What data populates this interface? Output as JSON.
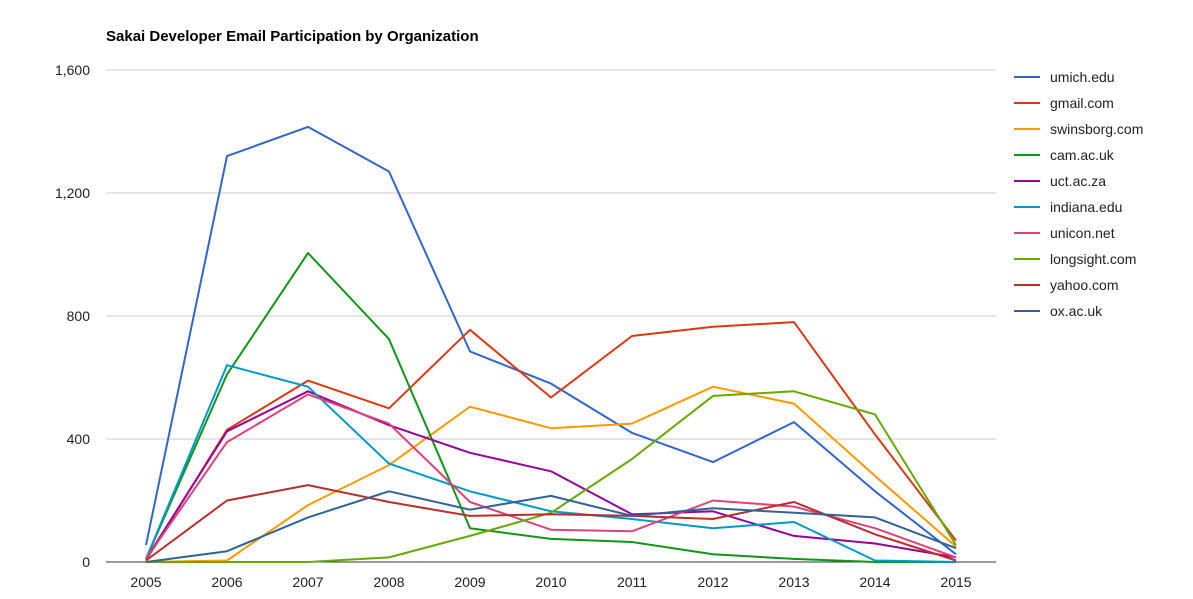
{
  "chart_data": {
    "type": "line",
    "title": "Sakai Developer Email Participation by Organization",
    "xlabel": "",
    "ylabel": "",
    "ylim": [
      0,
      1600
    ],
    "y_ticks": [
      0,
      400,
      800,
      1200,
      1600
    ],
    "y_tick_labels": [
      "0",
      "400",
      "800",
      "1,200",
      "1,600"
    ],
    "grid": true,
    "legend_position": "right",
    "categories": [
      "2005",
      "2006",
      "2007",
      "2008",
      "2009",
      "2010",
      "2011",
      "2012",
      "2013",
      "2014",
      "2015"
    ],
    "series": [
      {
        "name": "umich.edu",
        "color": "#3366cc",
        "values": [
          55,
          1320,
          1415,
          1270,
          685,
          580,
          420,
          325,
          455,
          230,
          25
        ]
      },
      {
        "name": "gmail.com",
        "color": "#dc3912",
        "values": [
          5,
          430,
          590,
          500,
          755,
          535,
          735,
          765,
          780,
          415,
          70
        ]
      },
      {
        "name": "swinsborg.com",
        "color": "#ff9900",
        "values": [
          0,
          5,
          185,
          315,
          505,
          435,
          450,
          570,
          515,
          280,
          50
        ]
      },
      {
        "name": "cam.ac.uk",
        "color": "#109618",
        "values": [
          10,
          610,
          1005,
          725,
          110,
          75,
          65,
          25,
          10,
          0,
          0
        ]
      },
      {
        "name": "uct.ac.za",
        "color": "#990099",
        "values": [
          10,
          425,
          555,
          445,
          355,
          295,
          155,
          165,
          85,
          60,
          15
        ]
      },
      {
        "name": "indiana.edu",
        "color": "#0099c6",
        "values": [
          10,
          640,
          570,
          320,
          230,
          165,
          140,
          110,
          130,
          5,
          0
        ]
      },
      {
        "name": "unicon.net",
        "color": "#dd4477",
        "values": [
          10,
          390,
          545,
          450,
          195,
          105,
          100,
          200,
          180,
          110,
          15
        ]
      },
      {
        "name": "longsight.com",
        "color": "#66aa00",
        "values": [
          0,
          0,
          0,
          15,
          85,
          160,
          335,
          540,
          555,
          480,
          55
        ]
      },
      {
        "name": "yahoo.com",
        "color": "#b82e2e",
        "values": [
          5,
          200,
          250,
          195,
          150,
          155,
          150,
          140,
          195,
          90,
          5
        ]
      },
      {
        "name": "ox.ac.uk",
        "color": "#316395",
        "values": [
          0,
          35,
          145,
          230,
          170,
          215,
          150,
          175,
          160,
          145,
          45
        ]
      }
    ]
  }
}
